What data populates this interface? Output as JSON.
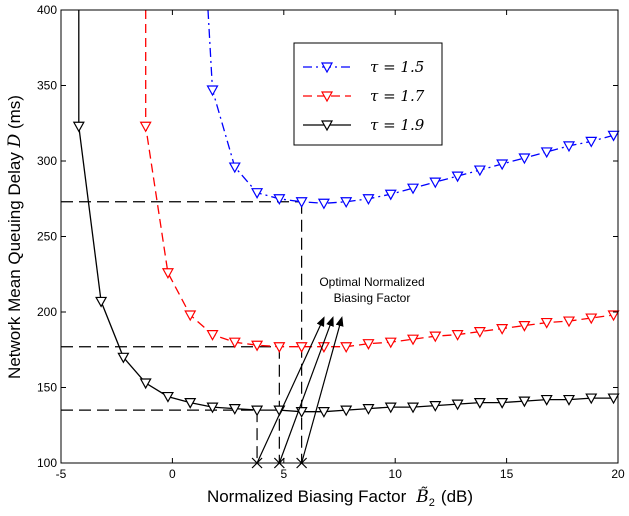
{
  "chart_data": {
    "type": "line",
    "xlabel": "Normalized Biasing Factor",
    "xlabel_symbol": "B̃",
    "xlabel_subscript": "2",
    "xlabel_unit": "(dB)",
    "ylabel": "Network Mean Queuing Delay",
    "ylabel_symbol": "D",
    "ylabel_unit": "(ms)",
    "xlim": [
      -5,
      20
    ],
    "ylim": [
      100,
      400
    ],
    "xticks": [
      -5,
      0,
      5,
      10,
      15,
      20
    ],
    "yticks": [
      100,
      150,
      200,
      250,
      300,
      350,
      400
    ],
    "grid": false,
    "legend": "top-right",
    "series": [
      {
        "name": "τ = 1.5",
        "legend_label": "τ = 1.5",
        "color": "#0000ff",
        "style": "dashdot",
        "x": [
          1.8,
          2.8,
          3.8,
          4.8,
          5.8,
          6.8,
          7.8,
          8.8,
          9.8,
          10.8,
          11.8,
          12.8,
          13.8,
          14.8,
          15.8,
          16.8,
          17.8,
          18.8,
          19.8
        ],
        "y": [
          347,
          296,
          279,
          275,
          273,
          272,
          273,
          275,
          278,
          282,
          286,
          290,
          294,
          298,
          302,
          306,
          310,
          313,
          317
        ],
        "curve_to": [
          1.6,
          400
        ]
      },
      {
        "name": "τ = 1.7",
        "legend_label": "τ = 1.7",
        "color": "#ff0000",
        "style": "dashed",
        "x": [
          -1.2,
          -0.2,
          0.8,
          1.8,
          2.8,
          3.8,
          4.8,
          5.8,
          6.8,
          7.8,
          8.8,
          9.8,
          10.8,
          11.8,
          12.8,
          13.8,
          14.8,
          15.8,
          16.8,
          17.8,
          18.8,
          19.8
        ],
        "y": [
          323,
          226,
          198,
          185,
          180,
          178,
          177,
          177,
          177,
          177,
          179,
          180,
          182,
          184,
          185,
          187,
          189,
          191,
          193,
          194,
          196,
          198
        ],
        "curve_to": [
          -1.2,
          400
        ]
      },
      {
        "name": "τ = 1.9",
        "legend_label": "τ = 1.9",
        "color": "#000000",
        "style": "solid",
        "x": [
          -4.2,
          -3.2,
          -2.2,
          -1.2,
          -0.2,
          0.8,
          1.8,
          2.8,
          3.8,
          4.8,
          5.8,
          6.8,
          7.8,
          8.8,
          9.8,
          10.8,
          11.8,
          12.8,
          13.8,
          14.8,
          15.8,
          16.8,
          17.8,
          18.8,
          19.8
        ],
        "y": [
          323,
          207,
          170,
          153,
          144,
          140,
          137,
          136,
          135,
          135,
          134,
          134,
          135,
          136,
          137,
          137,
          138,
          139,
          140,
          140,
          141,
          142,
          142,
          143,
          143
        ],
        "curve_to": [
          -4.2,
          400
        ]
      }
    ],
    "optima": [
      {
        "x": 5.8,
        "y": 273
      },
      {
        "x": 4.8,
        "y": 177
      },
      {
        "x": 3.8,
        "y": 135
      }
    ],
    "annotation": {
      "line1": "Optimal Normalized",
      "line2": "Biasing Factor",
      "anchor": [
        7.6,
        196
      ]
    }
  }
}
